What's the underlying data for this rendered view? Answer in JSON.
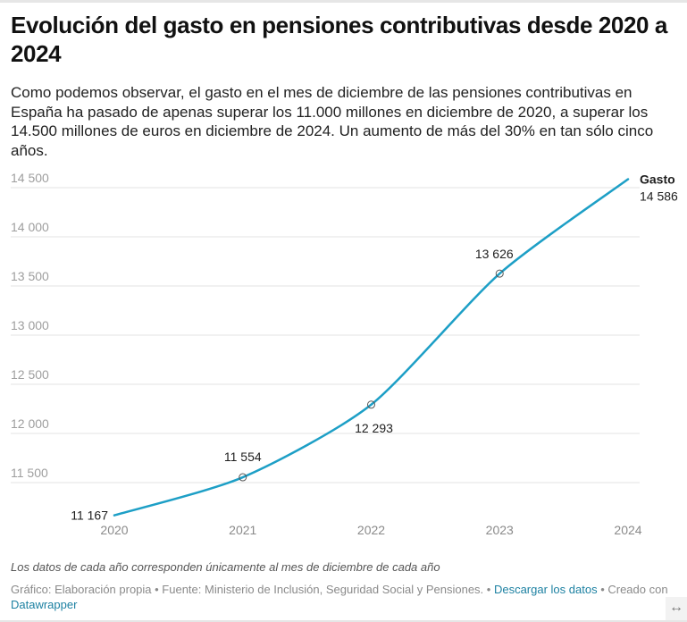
{
  "header": {
    "title": "Evolución del gasto en pensiones contributivas desde 2020 a 2024",
    "description": "Como podemos observar, el gasto en el mes de diciembre de las pensiones contributivas en España ha pasado de apenas superar los 11.000 millones en diciembre de 2020, a superar los 14.500 millones de euros en diciembre de 2024. Un aumento de más del 30% en tan sólo cinco años."
  },
  "chart_data": {
    "type": "line",
    "title": "Evolución del gasto en pensiones contributivas desde 2020 a 2024",
    "xlabel": "",
    "ylabel": "",
    "x": [
      "2020",
      "2021",
      "2022",
      "2023",
      "2024"
    ],
    "series": [
      {
        "name": "Gasto",
        "values": [
          11167,
          11554,
          12293,
          13626,
          14586
        ],
        "value_labels": [
          "11 167",
          "11 554",
          "12 293",
          "13 626",
          "14 586"
        ],
        "color": "#1d9fc6"
      }
    ],
    "yticks": [
      11500,
      12000,
      12500,
      13000,
      13500,
      14000,
      14500
    ],
    "ytick_labels": [
      "11 500",
      "12 000",
      "12 500",
      "13 000",
      "13 500",
      "14 000",
      "14 500"
    ],
    "ylim": [
      11150,
      14600
    ],
    "grid": true,
    "legend": "direct label at line end (right)"
  },
  "footer": {
    "note": "Los datos de cada año corresponden únicamente al mes de diciembre de cada año",
    "source_prefix": "Gráfico: Elaboración propia • Fuente: Ministerio de Inclusión, Seguridad Social y Pensiones. • ",
    "download_link": "Descargar los datos",
    "created_prefix": " • Creado con ",
    "datawrapper_link": "Datawrapper",
    "resize_icon": "↔"
  }
}
